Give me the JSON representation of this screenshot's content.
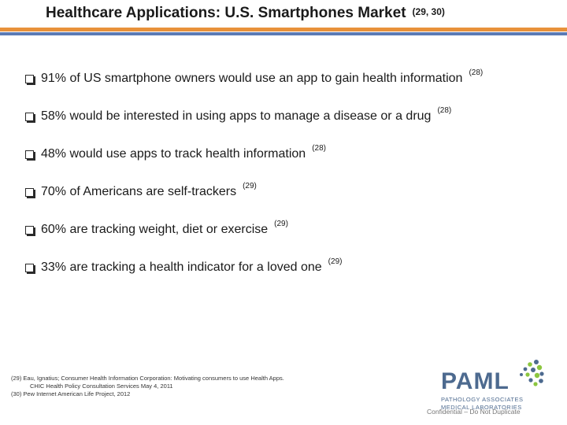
{
  "header": {
    "title": "Healthcare Applications:  U.S. Smartphones  Market",
    "title_ref": "(29, 30)"
  },
  "bullets": [
    {
      "text": "91% of US smartphone owners would use an app to gain health information",
      "ref": "(28)"
    },
    {
      "text": "58% would be interested in using apps to manage a disease or a drug",
      "ref": "(28)"
    },
    {
      "text": "48% would use apps to track health information",
      "ref": "(28)"
    },
    {
      "text": "70% of Americans are self-trackers",
      "ref": "(29)"
    },
    {
      "text": "60% are tracking weight, diet or exercise",
      "ref": "(29)"
    },
    {
      "text": "33% are tracking a health indicator for a loved one",
      "ref": "(29)"
    }
  ],
  "references": {
    "line1": "(29)   Eau, Ignatius; Consumer Health Information Corporation:  Motivating consumers to use Health Apps.",
    "line2": "CHIC Health Policy Consultation Services May 4, 2011",
    "line3": "(30)   Pew Internet American Life Project, 2012"
  },
  "logo": {
    "name": "PAML",
    "line1": "PATHOLOGY ASSOCIATES",
    "line2": "MEDICAL LABORATORIES"
  },
  "footer": {
    "confidential": "Confidential – Do Not Duplicate"
  },
  "colors": {
    "rule_orange": "#e8913a",
    "rule_blue": "#5b7bb5",
    "logo_blue": "#4d6a8f",
    "logo_green": "#8cc63f"
  }
}
